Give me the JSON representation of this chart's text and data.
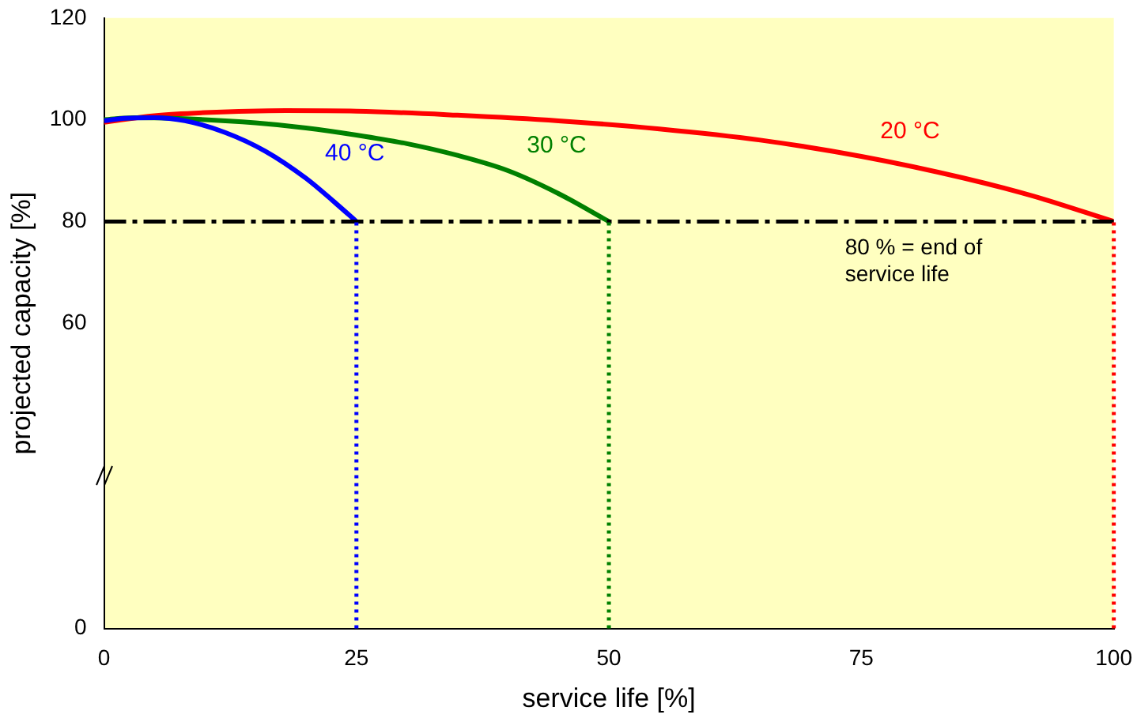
{
  "chart_data": {
    "type": "line",
    "xlabel": "service life [%]",
    "ylabel": "projected capacity [%]",
    "xlim": [
      0,
      100
    ],
    "xticks": [
      0,
      25,
      50,
      75,
      100
    ],
    "ylim": [
      0,
      120
    ],
    "yticks": [
      0,
      60,
      80,
      100,
      120
    ],
    "grid": false,
    "legend": false,
    "marker": "none",
    "line_style": "solid",
    "series": [
      {
        "name": "20 °C",
        "color": "#ff0000",
        "x": [
          0,
          5,
          10,
          18,
          25,
          35,
          45,
          55,
          65,
          75,
          85,
          92,
          100
        ],
        "values": [
          99.5,
          100.8,
          101.4,
          101.8,
          101.7,
          100.9,
          99.8,
          98.2,
          96,
          92.8,
          88.6,
          85,
          80
        ]
      },
      {
        "name": "30 °C",
        "color": "#008000",
        "x": [
          0,
          3,
          8,
          15,
          20,
          25,
          30,
          35,
          40,
          45,
          50
        ],
        "values": [
          100,
          100.4,
          100.2,
          99.4,
          98.4,
          97,
          95.3,
          93,
          90,
          85.5,
          80
        ]
      },
      {
        "name": "40 °C",
        "color": "#0000ff",
        "x": [
          0,
          2,
          5,
          8,
          12,
          16,
          20,
          23,
          25
        ],
        "values": [
          99.8,
          100.3,
          100.4,
          99.8,
          97.5,
          93.8,
          88.5,
          83.5,
          80
        ]
      }
    ],
    "ref_lines": [
      {
        "axis": "y",
        "value": 80,
        "label": "80 % = end of service life",
        "color": "#000000",
        "line_style": "dashed"
      },
      {
        "axis": "x",
        "value": 25,
        "color": "#0000ff",
        "line_style": "dotted"
      },
      {
        "axis": "x",
        "value": 50,
        "color": "#008000",
        "line_style": "dotted"
      },
      {
        "axis": "x",
        "value": 100,
        "color": "#ff0000",
        "line_style": "dotted"
      }
    ]
  }
}
